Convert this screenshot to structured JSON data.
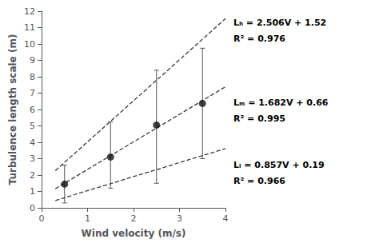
{
  "chart_data": {
    "type": "scatter",
    "xlabel": "Wind velocity (m/s)",
    "ylabel": "Turbulence length scale (m)",
    "xlim": [
      0,
      4
    ],
    "ylim": [
      0,
      12
    ],
    "xticks": [
      0,
      1,
      2,
      3,
      4
    ],
    "yticks": [
      0,
      1,
      2,
      3,
      4,
      5,
      6,
      7,
      8,
      9,
      10,
      11,
      12
    ],
    "grid": false,
    "annotations": [
      "Lₕ = 2.506V + 1.52\nR² = 0.976",
      "Lₘ = 1.682V + 0.66\nR² = 0.995",
      "Lₗ = 0.857V + 0.19\nR² = 0.966"
    ],
    "series": [
      {
        "type": "line",
        "x": [
          0.3,
          4.0
        ],
        "values": [
          2.2718,
          11.544
        ],
        "color": "#3a3a3a",
        "line_style": "dashed"
      },
      {
        "type": "line",
        "x": [
          0.3,
          4.0
        ],
        "values": [
          1.1646,
          7.388
        ],
        "color": "#3a3a3a",
        "line_style": "dashed"
      },
      {
        "type": "line",
        "x": [
          0.3,
          4.0
        ],
        "values": [
          0.4471,
          3.618
        ],
        "color": "#3a3a3a",
        "line_style": "dashed"
      },
      {
        "type": "scatter",
        "x": [
          0.5,
          1.5,
          2.5,
          3.5
        ],
        "values": [
          1.45,
          3.1,
          5.05,
          6.37
        ],
        "error_lower": [
          1.15,
          1.9,
          3.55,
          3.37
        ],
        "error_upper": [
          1.15,
          2.15,
          3.35,
          3.37
        ],
        "color": "#111111",
        "marker": "circle"
      }
    ]
  }
}
